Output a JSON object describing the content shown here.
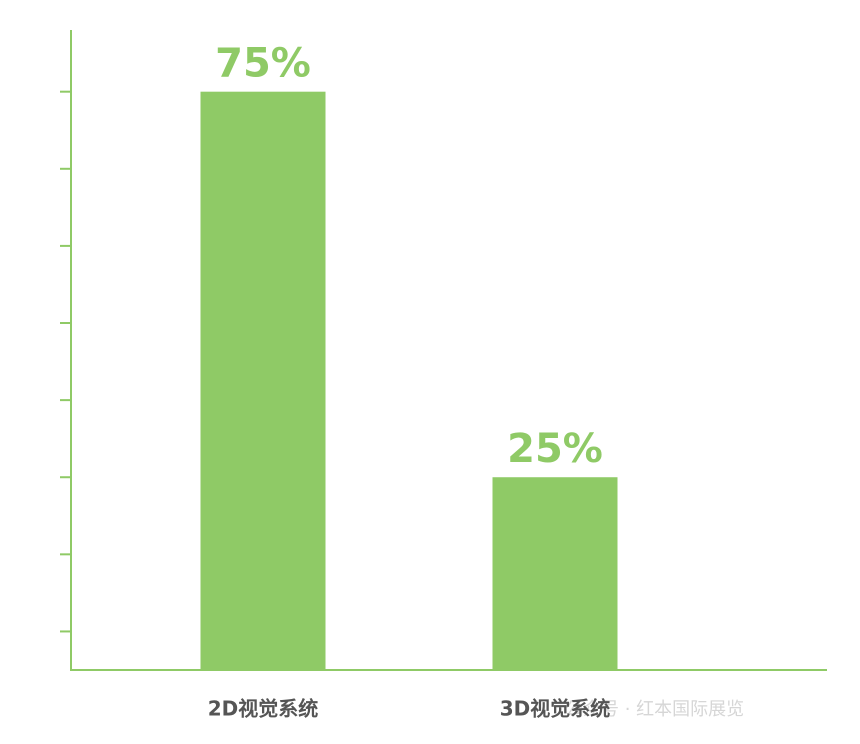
{
  "chart_data": {
    "type": "bar",
    "categories": [
      "2D视觉系统",
      "3D视觉系统"
    ],
    "values": [
      75,
      25
    ],
    "value_labels": [
      "75%",
      "25%"
    ],
    "color": "#8fca66",
    "ylim": [
      0,
      83
    ],
    "yticks": [
      5,
      15,
      25,
      35,
      45,
      55,
      65,
      75
    ],
    "grid": false,
    "watermark": "公众号 · 红本国际展览"
  }
}
